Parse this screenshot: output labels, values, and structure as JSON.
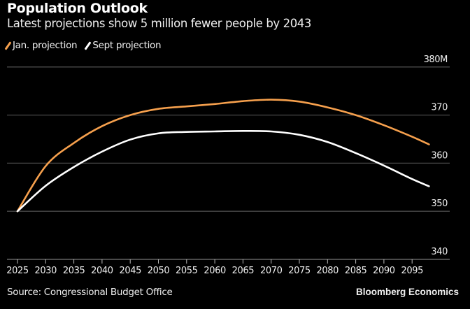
{
  "header": {
    "title": "Population Outlook",
    "subtitle": "Latest projections show 5 million fewer people by 2043"
  },
  "footer": {
    "source": "Source: Congressional Budget Office",
    "brand": "Bloomberg Economics"
  },
  "chart_data": {
    "type": "line",
    "title": "Population Outlook",
    "subtitle": "Latest projections show 5 million fewer people by 2043",
    "xlabel": "",
    "ylabel": "",
    "xlim": [
      2025,
      2098
    ],
    "ylim": [
      340,
      380
    ],
    "x_ticks": [
      2025,
      2030,
      2035,
      2040,
      2045,
      2050,
      2055,
      2060,
      2065,
      2070,
      2075,
      2080,
      2085,
      2090,
      2095
    ],
    "y_ticks": [
      {
        "value": 340,
        "label": "340"
      },
      {
        "value": 350,
        "label": "350"
      },
      {
        "value": 360,
        "label": "360"
      },
      {
        "value": 370,
        "label": "370"
      },
      {
        "value": 380,
        "label": "380M"
      }
    ],
    "grid": true,
    "legend_position": "top-left",
    "x": [
      2025,
      2030,
      2035,
      2040,
      2045,
      2050,
      2055,
      2060,
      2065,
      2070,
      2075,
      2080,
      2085,
      2090,
      2095,
      2098
    ],
    "series": [
      {
        "name": "Jan. projection",
        "color": "#f6a04d",
        "values": [
          350.0,
          359.4,
          364.2,
          367.7,
          370.0,
          371.3,
          371.8,
          372.3,
          372.9,
          373.2,
          372.8,
          371.6,
          370.0,
          367.9,
          365.5,
          363.9
        ]
      },
      {
        "name": "Sept projection",
        "color": "#ffffff",
        "values": [
          350.0,
          355.3,
          359.2,
          362.4,
          364.9,
          366.2,
          366.5,
          366.6,
          366.7,
          366.6,
          365.9,
          364.4,
          362.1,
          359.5,
          356.7,
          355.2
        ]
      }
    ]
  }
}
